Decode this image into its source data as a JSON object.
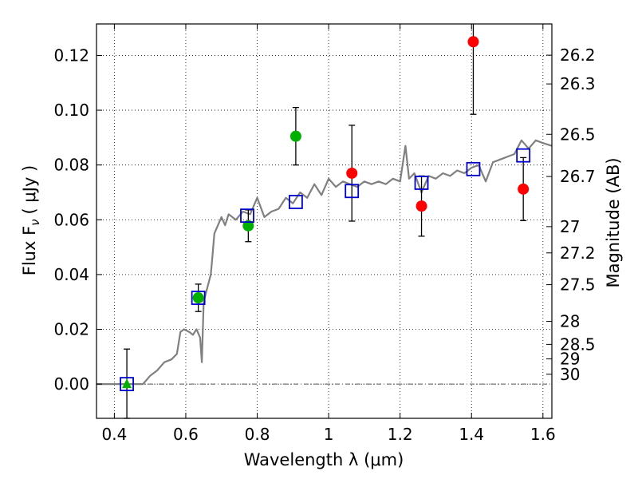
{
  "chart_data": {
    "type": "scatter",
    "xlabel": "Wavelength  λ (μm)",
    "ylabel_left": "Flux  F",
    "ylabel_left_sub": "ν",
    "ylabel_left_unit": "( μJy )",
    "ylabel_right": "Magnitude (AB)",
    "xlim": [
      0.35,
      1.625
    ],
    "ylim": [
      -0.0125,
      0.1315
    ],
    "grid": true,
    "x_ticks": [
      0.4,
      0.6,
      0.8,
      1.0,
      1.2,
      1.4,
      1.6
    ],
    "x_tick_labels": [
      "0.4",
      "0.6",
      "0.8",
      "1",
      "1.2",
      "1.4",
      "1.6"
    ],
    "y_ticks": [
      0.0,
      0.02,
      0.04,
      0.06,
      0.08,
      0.1,
      0.12
    ],
    "y_tick_labels": [
      "0.00",
      "0.02",
      "0.04",
      "0.06",
      "0.08",
      "0.10",
      "0.12"
    ],
    "right_axis_ticks": [
      {
        "flux": 0.1201,
        "label": "26.2"
      },
      {
        "flux": 0.1096,
        "label": "26.3"
      },
      {
        "flux": 0.0912,
        "label": "26.5"
      },
      {
        "flux": 0.0758,
        "label": "26.7"
      },
      {
        "flux": 0.0575,
        "label": "27"
      },
      {
        "flux": 0.0479,
        "label": "27.2"
      },
      {
        "flux": 0.0363,
        "label": "27.5"
      },
      {
        "flux": 0.0229,
        "label": "28"
      },
      {
        "flux": 0.0145,
        "label": "28.5"
      },
      {
        "flux": 0.0092,
        "label": "29"
      },
      {
        "flux": 0.0036,
        "label": "30"
      }
    ],
    "model_sed": {
      "color": "#808080",
      "points": [
        [
          0.35,
          0.0
        ],
        [
          0.48,
          0.0
        ],
        [
          0.5,
          0.003
        ],
        [
          0.52,
          0.005
        ],
        [
          0.54,
          0.008
        ],
        [
          0.56,
          0.009
        ],
        [
          0.575,
          0.011
        ],
        [
          0.585,
          0.019
        ],
        [
          0.595,
          0.02
        ],
        [
          0.61,
          0.019
        ],
        [
          0.62,
          0.018
        ],
        [
          0.63,
          0.02
        ],
        [
          0.64,
          0.017
        ],
        [
          0.645,
          0.008
        ],
        [
          0.65,
          0.03
        ],
        [
          0.66,
          0.035
        ],
        [
          0.67,
          0.04
        ],
        [
          0.675,
          0.047
        ],
        [
          0.68,
          0.055
        ],
        [
          0.69,
          0.058
        ],
        [
          0.7,
          0.061
        ],
        [
          0.71,
          0.058
        ],
        [
          0.72,
          0.062
        ],
        [
          0.74,
          0.06
        ],
        [
          0.76,
          0.063
        ],
        [
          0.78,
          0.062
        ],
        [
          0.8,
          0.068
        ],
        [
          0.82,
          0.061
        ],
        [
          0.84,
          0.063
        ],
        [
          0.86,
          0.064
        ],
        [
          0.88,
          0.068
        ],
        [
          0.9,
          0.066
        ],
        [
          0.92,
          0.07
        ],
        [
          0.94,
          0.068
        ],
        [
          0.96,
          0.073
        ],
        [
          0.98,
          0.069
        ],
        [
          1.0,
          0.075
        ],
        [
          1.02,
          0.072
        ],
        [
          1.04,
          0.074
        ],
        [
          1.06,
          0.073
        ],
        [
          1.08,
          0.072
        ],
        [
          1.1,
          0.074
        ],
        [
          1.12,
          0.073
        ],
        [
          1.14,
          0.074
        ],
        [
          1.16,
          0.073
        ],
        [
          1.18,
          0.075
        ],
        [
          1.2,
          0.074
        ],
        [
          1.215,
          0.087
        ],
        [
          1.225,
          0.075
        ],
        [
          1.24,
          0.077
        ],
        [
          1.26,
          0.07
        ],
        [
          1.28,
          0.076
        ],
        [
          1.3,
          0.075
        ],
        [
          1.32,
          0.077
        ],
        [
          1.34,
          0.076
        ],
        [
          1.36,
          0.078
        ],
        [
          1.38,
          0.077
        ],
        [
          1.4,
          0.079
        ],
        [
          1.42,
          0.08
        ],
        [
          1.44,
          0.074
        ],
        [
          1.46,
          0.081
        ],
        [
          1.48,
          0.082
        ],
        [
          1.5,
          0.083
        ],
        [
          1.52,
          0.084
        ],
        [
          1.54,
          0.089
        ],
        [
          1.56,
          0.086
        ],
        [
          1.58,
          0.089
        ],
        [
          1.6,
          0.088
        ],
        [
          1.625,
          0.087
        ]
      ]
    },
    "reference_line": {
      "y": 0.0,
      "style": "dash-dot",
      "color": "#555555"
    },
    "series": [
      {
        "marker": "square-open",
        "color": "#0000cc",
        "points": [
          {
            "x": 0.435,
            "y": 0.0
          },
          {
            "x": 0.635,
            "y": 0.0315
          },
          {
            "x": 0.772,
            "y": 0.0615
          },
          {
            "x": 0.908,
            "y": 0.0665
          },
          {
            "x": 1.065,
            "y": 0.0705
          },
          {
            "x": 1.26,
            "y": 0.0735
          },
          {
            "x": 1.405,
            "y": 0.0785
          },
          {
            "x": 1.545,
            "y": 0.0835
          }
        ]
      },
      {
        "marker": "circle",
        "color": "#00b000",
        "points": [
          {
            "x": 0.635,
            "y": 0.0315,
            "err": 0.005
          },
          {
            "x": 0.775,
            "y": 0.0578,
            "err": 0.0058
          },
          {
            "x": 0.908,
            "y": 0.0905,
            "err": 0.0105
          }
        ]
      },
      {
        "marker": "triangle",
        "color": "#00b000",
        "points": [
          {
            "x": 0.435,
            "y": 0.0,
            "err": 0.0128
          }
        ]
      },
      {
        "marker": "circle",
        "color": "#ff0000",
        "points": [
          {
            "x": 1.065,
            "y": 0.077,
            "err": 0.0175
          },
          {
            "x": 1.26,
            "y": 0.065,
            "err": 0.011
          },
          {
            "x": 1.405,
            "y": 0.125,
            "err": 0.0265
          },
          {
            "x": 1.545,
            "y": 0.0712,
            "err": 0.0115
          }
        ]
      }
    ]
  }
}
